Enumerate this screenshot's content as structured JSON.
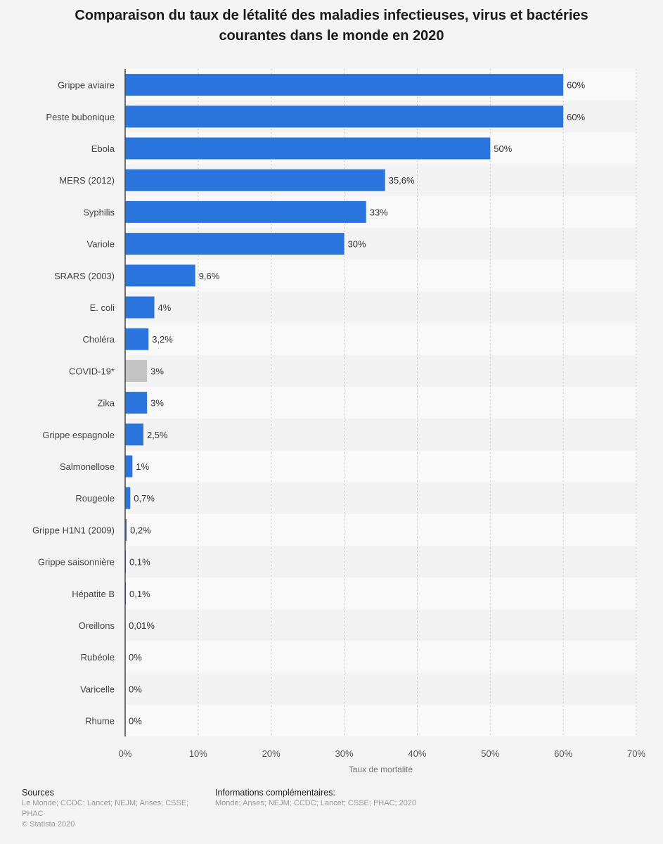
{
  "chart_data": {
    "type": "bar",
    "orientation": "horizontal",
    "title": "Comparaison du taux de létalité des maladies infectieuses, virus et bactéries courantes dans le monde en 2020",
    "xlabel": "Taux de mortalité",
    "ylabel": "",
    "xlim": [
      0,
      70
    ],
    "ticks": [
      0,
      10,
      20,
      30,
      40,
      50,
      60,
      70
    ],
    "tick_labels": [
      "0%",
      "10%",
      "20%",
      "30%",
      "40%",
      "50%",
      "60%",
      "70%"
    ],
    "grid": true,
    "categories": [
      "Grippe aviaire",
      "Peste bubonique",
      "Ebola",
      "MERS (2012)",
      "Syphilis",
      "Variole",
      "SRARS (2003)",
      "E. coli",
      "Choléra",
      "COVID-19*",
      "Zika",
      "Grippe espagnole",
      "Salmonellose",
      "Rougeole",
      "Grippe H1N1 (2009)",
      "Grippe saisonnière",
      "Hépatite B",
      "Oreillons",
      "Rubéole",
      "Varicelle",
      "Rhume"
    ],
    "values": [
      60,
      60,
      50,
      35.6,
      33,
      30,
      9.6,
      4,
      3.2,
      3,
      3,
      2.5,
      1,
      0.7,
      0.2,
      0.1,
      0.1,
      0.01,
      0,
      0,
      0
    ],
    "value_labels": [
      "60%",
      "60%",
      "50%",
      "35,6%",
      "33%",
      "30%",
      "9,6%",
      "4%",
      "3,2%",
      "3%",
      "3%",
      "2,5%",
      "1%",
      "0,7%",
      "0,2%",
      "0,1%",
      "0,1%",
      "0,01%",
      "0%",
      "0%",
      "0%"
    ],
    "highlighted_category": "COVID-19*",
    "colors": {
      "bar": "#2a74dd",
      "highlight": "#c4c4c4",
      "axis": "#444444",
      "grid": "#c8c8c8",
      "band_light": "#f9f9f9",
      "band_dark": "#f3f3f3"
    }
  },
  "footer": {
    "sources_heading": "Sources",
    "sources_text": "Le Monde; CCDC; Lancet; NEJM; Anses; CSSE; PHAC",
    "copyright": "© Statista 2020",
    "info_heading": "Informations complémentaires:",
    "info_text": "Monde; Anses; NEJM; CCDC; Lancet; CSSE; PHAC; 2020"
  }
}
